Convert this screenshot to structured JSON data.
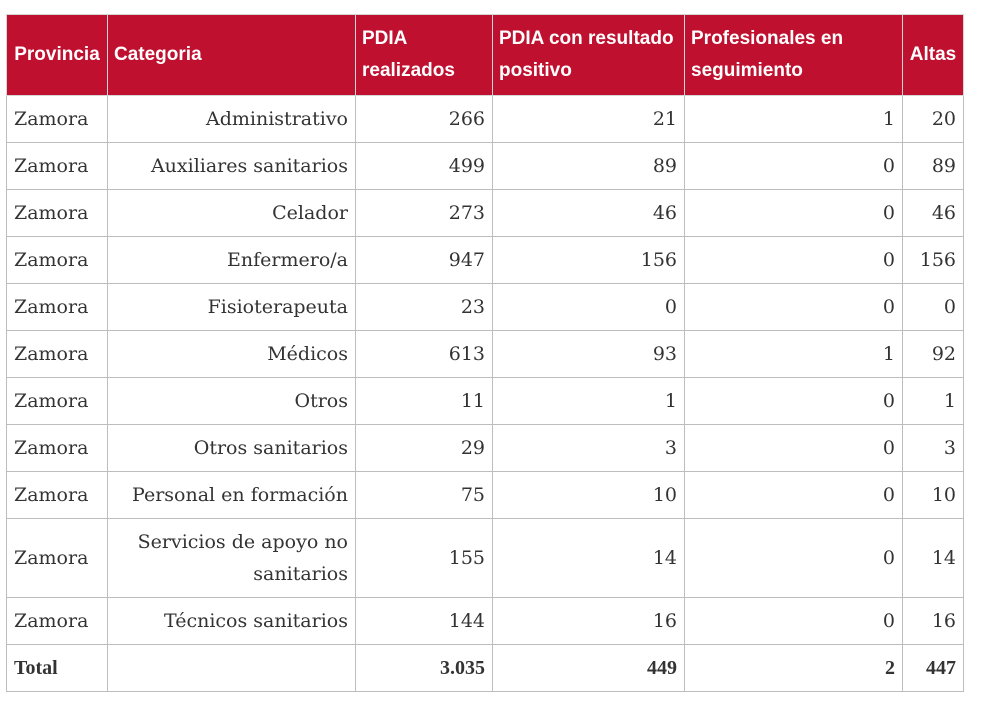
{
  "table": {
    "headers": [
      "Provincia",
      "Categoria",
      "PDIA realizados",
      "PDIA con resultado positivo",
      "Profesionales en seguimiento",
      "Altas"
    ],
    "rows": [
      [
        "Zamora",
        "Administrativo",
        "266",
        "21",
        "1",
        "20"
      ],
      [
        "Zamora",
        "Auxiliares sanitarios",
        "499",
        "89",
        "0",
        "89"
      ],
      [
        "Zamora",
        "Celador",
        "273",
        "46",
        "0",
        "46"
      ],
      [
        "Zamora",
        "Enfermero/a",
        "947",
        "156",
        "0",
        "156"
      ],
      [
        "Zamora",
        "Fisioterapeuta",
        "23",
        "0",
        "0",
        "0"
      ],
      [
        "Zamora",
        "Médicos",
        "613",
        "93",
        "1",
        "92"
      ],
      [
        "Zamora",
        "Otros",
        "11",
        "1",
        "0",
        "1"
      ],
      [
        "Zamora",
        "Otros sanitarios",
        "29",
        "3",
        "0",
        "3"
      ],
      [
        "Zamora",
        "Personal en formación",
        "75",
        "10",
        "0",
        "10"
      ],
      [
        "Zamora",
        "Servicios de apoyo no sanitarios",
        "155",
        "14",
        "0",
        "14"
      ],
      [
        "Zamora",
        "Técnicos sanitarios",
        "144",
        "16",
        "0",
        "16"
      ]
    ],
    "total": [
      "Total",
      "",
      "3.035",
      "449",
      "2",
      "447"
    ]
  },
  "colors": {
    "header_bg": "#c0102f",
    "header_text": "#ffffff",
    "body_text": "#333333",
    "border": "#bdbdbd"
  }
}
